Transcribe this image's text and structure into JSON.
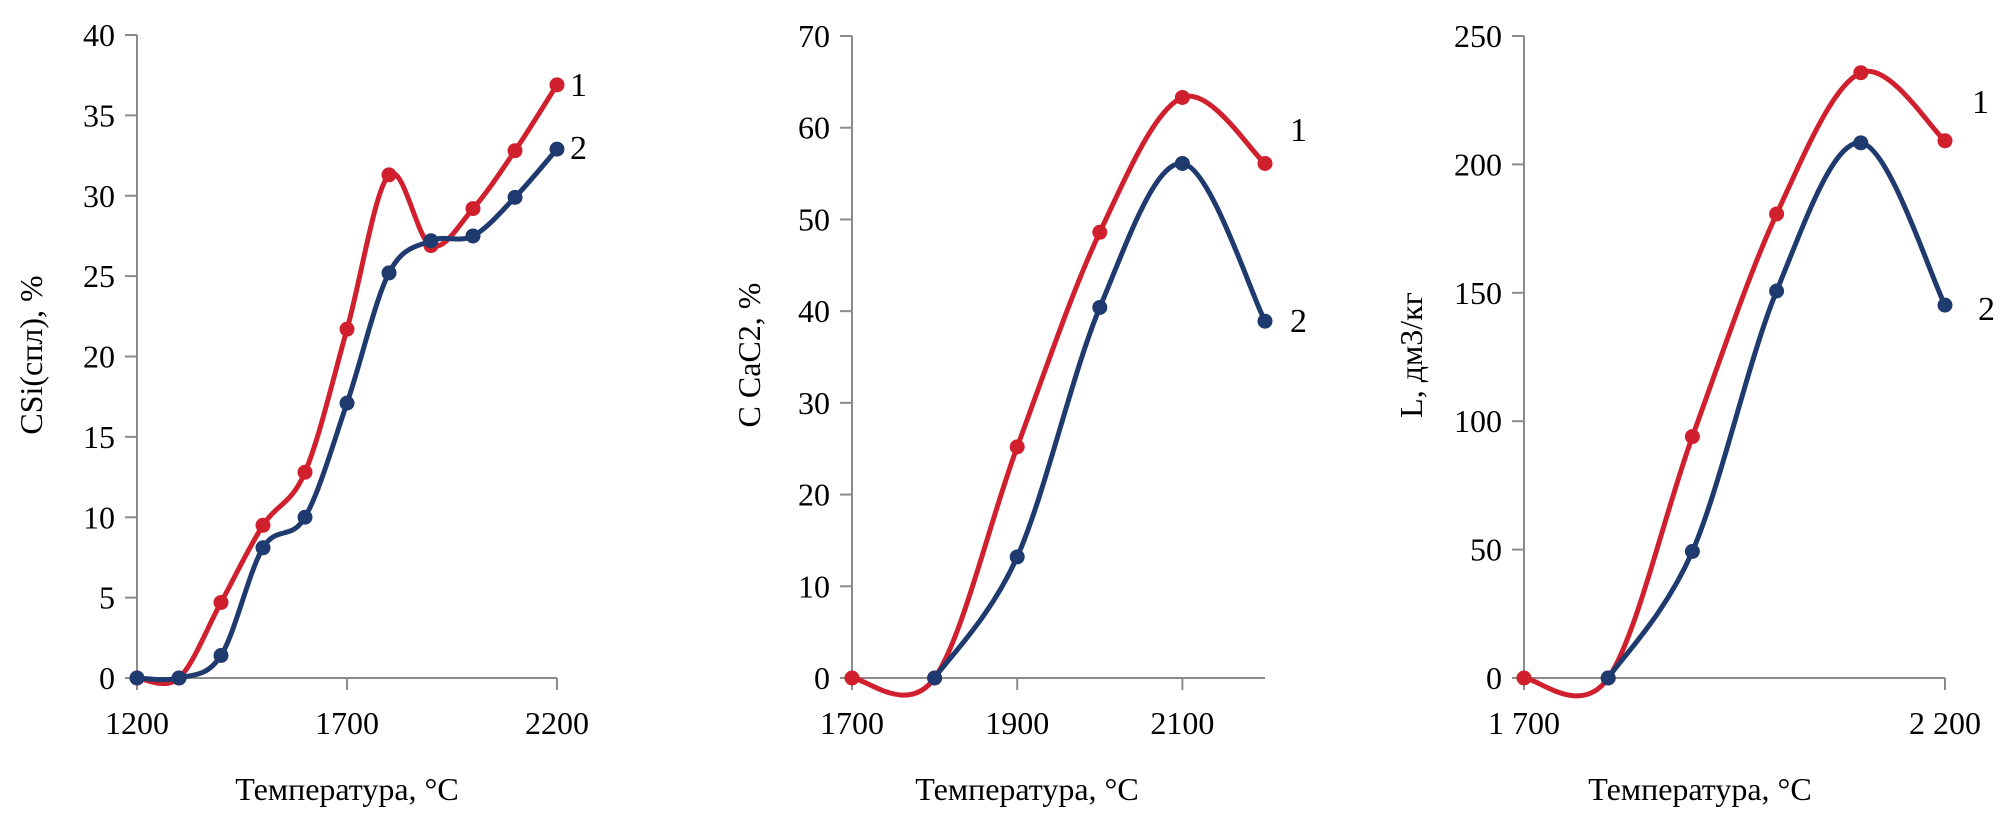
{
  "chart_data": [
    {
      "type": "line",
      "title": "",
      "xlabel": "Температура,  °C",
      "ylabel": "CSi(спл), %",
      "xlim": [
        1200,
        2200
      ],
      "ylim": [
        0,
        40
      ],
      "x_ticks": [
        1200,
        1700,
        2200
      ],
      "x_tick_labels": [
        "1200",
        "1700",
        "2200"
      ],
      "y_ticks": [
        0,
        5,
        10,
        15,
        20,
        25,
        30,
        35,
        40
      ],
      "y_tick_labels": [
        "0",
        "5",
        "10",
        "15",
        "20",
        "25",
        "30",
        "35",
        "40"
      ],
      "grid": false,
      "smooth": true,
      "x": [
        1200,
        1300,
        1400,
        1500,
        1600,
        1700,
        1800,
        1900,
        2000,
        2100,
        2200
      ],
      "series": [
        {
          "name": "1",
          "color": "#d0202e",
          "values": [
            0,
            0,
            4.7,
            9.5,
            12.8,
            21.7,
            31.3,
            26.9,
            29.2,
            32.8,
            36.9
          ]
        },
        {
          "name": "2",
          "color": "#1f3a6e",
          "values": [
            0,
            0,
            1.4,
            8.1,
            10.0,
            17.1,
            25.2,
            27.2,
            27.5,
            29.9,
            32.9
          ]
        }
      ]
    },
    {
      "type": "line",
      "title": "",
      "xlabel": "Температура,  °C",
      "ylabel": "C CaC2, %",
      "xlim": [
        1700,
        2200
      ],
      "ylim": [
        0,
        70
      ],
      "x_ticks": [
        1700,
        1900,
        2100
      ],
      "x_tick_labels": [
        "1700",
        "1900",
        "2100"
      ],
      "y_ticks": [
        0,
        10,
        20,
        30,
        40,
        50,
        60,
        70
      ],
      "y_tick_labels": [
        "0",
        "10",
        "20",
        "30",
        "40",
        "50",
        "60",
        "70"
      ],
      "grid": false,
      "smooth": true,
      "series": [
        {
          "name": "1",
          "color": "#d0202e",
          "x": [
            1700,
            1800,
            1900,
            2000,
            2100,
            2200
          ],
          "values": [
            0,
            0,
            25.2,
            48.6,
            63.3,
            56.1
          ]
        },
        {
          "name": "2",
          "color": "#1f3a6e",
          "x": [
            1800,
            1900,
            2000,
            2100,
            2200
          ],
          "values": [
            0,
            13.2,
            40.4,
            56.1,
            38.9
          ]
        }
      ]
    },
    {
      "type": "line",
      "title": "",
      "xlabel": "Температура,  °C",
      "ylabel": "L, дм3/кг",
      "xlim": [
        1700,
        2200
      ],
      "ylim": [
        0,
        250
      ],
      "x_ticks": [
        1700,
        2200
      ],
      "x_tick_labels": [
        "1 700",
        "2 200"
      ],
      "y_ticks": [
        0,
        50,
        100,
        150,
        200,
        250
      ],
      "y_tick_labels": [
        "0",
        "50",
        "100",
        "150",
        "200",
        "250"
      ],
      "grid": false,
      "smooth": true,
      "series": [
        {
          "name": "1",
          "color": "#d0202e",
          "x": [
            1700,
            1800,
            1900,
            2000,
            2100,
            2200
          ],
          "values": [
            0,
            0,
            94,
            180.7,
            235.7,
            209.2
          ]
        },
        {
          "name": "2",
          "color": "#1f3a6e",
          "x": [
            1800,
            1900,
            2000,
            2100,
            2200
          ],
          "values": [
            0,
            49.3,
            150.7,
            208.4,
            145.2
          ]
        }
      ]
    }
  ]
}
